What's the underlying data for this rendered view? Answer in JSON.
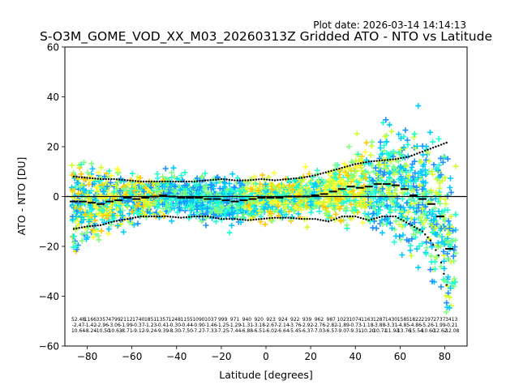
{
  "chart_data": {
    "type": "scatter",
    "plot_date": "Plot date: 2026-03-14 14:14:13",
    "title": "S-O3M_GOME_VOD_XX_M03_20260313Z Gridded ATO - NTO vs Latitude",
    "xlabel": "Latitude [degrees]",
    "ylabel": "ATO - NTO [DU]",
    "xlim": [
      -90,
      90
    ],
    "ylim": [
      -60,
      60
    ],
    "xticks": [
      -80,
      -60,
      -40,
      -20,
      0,
      20,
      40,
      60,
      80
    ],
    "yticks": [
      -60,
      -40,
      -20,
      0,
      20,
      40,
      60
    ],
    "xtick_labels": [
      "−80",
      "−60",
      "−40",
      "−20",
      "0",
      "20",
      "40",
      "60",
      "80"
    ],
    "ytick_labels": [
      "−60",
      "−40",
      "−20",
      "0",
      "20",
      "40",
      "60"
    ],
    "zero_line": 0,
    "marker": "+",
    "point_colors": [
      "#ffc800",
      "#ffff33",
      "#d0ff30",
      "#80ff80",
      "#20ffd0",
      "#00ccff",
      "#1e90ff",
      "#0000cd"
    ],
    "mean_bias": [
      [
        -86,
        -2
      ],
      [
        -82,
        -2
      ],
      [
        -78,
        -2.5
      ],
      [
        -74,
        -3
      ],
      [
        -70,
        -2
      ],
      [
        -66,
        -1.5
      ],
      [
        -62,
        -0.5
      ],
      [
        -58,
        -1
      ],
      [
        -54,
        -0.5
      ],
      [
        -50,
        0
      ],
      [
        -46,
        0.5
      ],
      [
        -42,
        0
      ],
      [
        -38,
        -0.5
      ],
      [
        -34,
        -0.5
      ],
      [
        -30,
        -0.5
      ],
      [
        -26,
        -1
      ],
      [
        -22,
        -1
      ],
      [
        -18,
        -1.5
      ],
      [
        -14,
        -2
      ],
      [
        -10,
        -1.5
      ],
      [
        -6,
        -1
      ],
      [
        -2,
        -0.5
      ],
      [
        2,
        -0.5
      ],
      [
        6,
        -0.5
      ],
      [
        10,
        0
      ],
      [
        14,
        0
      ],
      [
        18,
        0
      ],
      [
        22,
        0.5
      ],
      [
        26,
        1
      ],
      [
        30,
        2
      ],
      [
        34,
        3
      ],
      [
        38,
        4
      ],
      [
        42,
        3.5
      ],
      [
        46,
        4
      ],
      [
        50,
        5
      ],
      [
        54,
        5
      ],
      [
        58,
        4.5
      ],
      [
        62,
        3
      ],
      [
        66,
        0.5
      ],
      [
        70,
        -1
      ],
      [
        74,
        -3
      ],
      [
        78,
        -8
      ],
      [
        82,
        -21
      ]
    ],
    "bias_upper": [
      [
        -86,
        8
      ],
      [
        -80,
        7.5
      ],
      [
        -74,
        7
      ],
      [
        -68,
        7
      ],
      [
        -62,
        6.5
      ],
      [
        -56,
        6
      ],
      [
        -50,
        6
      ],
      [
        -44,
        6
      ],
      [
        -38,
        6
      ],
      [
        -32,
        6
      ],
      [
        -26,
        6.5
      ],
      [
        -20,
        7
      ],
      [
        -14,
        6.5
      ],
      [
        -8,
        6.5
      ],
      [
        -2,
        7
      ],
      [
        4,
        6.5
      ],
      [
        10,
        7
      ],
      [
        16,
        7.5
      ],
      [
        22,
        8.5
      ],
      [
        28,
        10
      ],
      [
        34,
        11.5
      ],
      [
        40,
        13
      ],
      [
        46,
        14
      ],
      [
        52,
        14.5
      ],
      [
        58,
        15
      ],
      [
        64,
        16
      ],
      [
        70,
        18
      ],
      [
        76,
        20
      ],
      [
        82,
        22
      ]
    ],
    "bias_lower": [
      [
        -86,
        -13
      ],
      [
        -80,
        -12
      ],
      [
        -74,
        -11.5
      ],
      [
        -68,
        -10
      ],
      [
        -62,
        -9
      ],
      [
        -56,
        -8
      ],
      [
        -50,
        -8
      ],
      [
        -44,
        -8
      ],
      [
        -38,
        -8.5
      ],
      [
        -32,
        -8
      ],
      [
        -26,
        -8
      ],
      [
        -20,
        -9
      ],
      [
        -14,
        -9
      ],
      [
        -8,
        -9.5
      ],
      [
        -2,
        -9
      ],
      [
        4,
        -8.5
      ],
      [
        10,
        -8.5
      ],
      [
        16,
        -9
      ],
      [
        22,
        -9
      ],
      [
        28,
        -10
      ],
      [
        34,
        -8
      ],
      [
        40,
        -8
      ],
      [
        46,
        -9.5
      ],
      [
        52,
        -8
      ],
      [
        58,
        -8
      ],
      [
        62,
        -10
      ],
      [
        66,
        -12
      ],
      [
        70,
        -14
      ],
      [
        74,
        -18
      ],
      [
        78,
        -25
      ],
      [
        82,
        -40
      ]
    ],
    "bin_annotations": {
      "row1": [
        "52.48",
        "1166",
        "3357",
        "4799",
        "2112",
        "1740",
        "1851",
        "1357",
        "1248",
        "1155",
        "1090",
        "1037",
        "999",
        "971",
        "940",
        "920",
        "923",
        "924",
        "922",
        "939",
        "962",
        "987",
        "1023",
        "1074",
        "1163",
        "1287",
        "1430",
        "1585",
        "1822",
        "2197",
        "2737",
        "3413"
      ],
      "row2": [
        "-2.47",
        "-1.42",
        "-2.96",
        "-3.06",
        "-1.99",
        "-0.37",
        "-1.23",
        "-0.41",
        "-0.30",
        "-0.44",
        "-0.90",
        "-1.46",
        "-1.25",
        "-1.29",
        "-1.31",
        "-3.18",
        "-2.67",
        "-2.14",
        "-3.76",
        "-2.92",
        "-2.76",
        "-2.82",
        "-1.89",
        "-0.73",
        "-1.18",
        "-3.88",
        "-3.31",
        "-4.85",
        "-4.86",
        "-5.26",
        "-1.99",
        "-0.21"
      ],
      "row3": [
        "10.64",
        "-8.24",
        "-10.50",
        "-10.63",
        "-8.71",
        "-9.12",
        "-9.24",
        "-9.39",
        "-8.30",
        "-7.50",
        "-7.27",
        "-7.33",
        "-7.25",
        "-7.44",
        "-6.88",
        "-6.51",
        "-6.02",
        "-6.64",
        "-5.45",
        "-6.37",
        "-7.03",
        "-6.57",
        "-9.07",
        "-9.31",
        "-10.20",
        "-10.71",
        "-11.93",
        "-13.76",
        "-15.54",
        "-10.60",
        "-12.62",
        "-12.08"
      ]
    }
  }
}
